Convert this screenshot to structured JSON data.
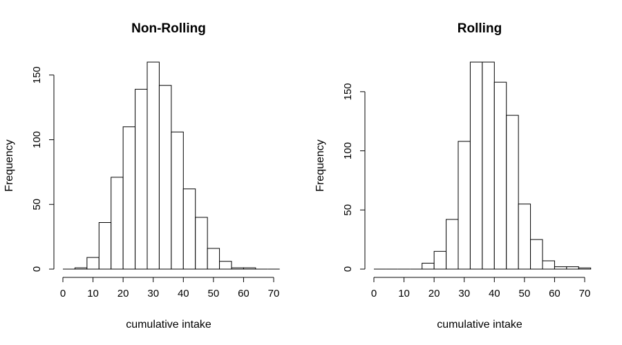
{
  "chart_data": [
    {
      "type": "bar",
      "title": "Non-Rolling",
      "xlabel": "cumulative intake",
      "ylabel": "Frequency",
      "xlim": [
        0,
        72
      ],
      "ylim": [
        0,
        160
      ],
      "bin_width": 4,
      "x_ticks": [
        0,
        10,
        20,
        30,
        40,
        50,
        60,
        70
      ],
      "y_ticks": [
        0,
        50,
        100,
        150
      ],
      "bins": [
        0,
        4,
        8,
        12,
        16,
        20,
        24,
        28,
        32,
        36,
        40,
        44,
        48,
        52,
        56,
        60,
        64,
        68
      ],
      "values": [
        0,
        1,
        9,
        36,
        71,
        110,
        139,
        160,
        142,
        106,
        62,
        40,
        16,
        6,
        1,
        1,
        0,
        0
      ]
    },
    {
      "type": "bar",
      "title": "Rolling",
      "xlabel": "cumulative intake",
      "ylabel": "Frequency",
      "xlim": [
        0,
        72
      ],
      "ylim": [
        0,
        175
      ],
      "bin_width": 4,
      "x_ticks": [
        0,
        10,
        20,
        30,
        40,
        50,
        60,
        70
      ],
      "y_ticks": [
        0,
        50,
        100,
        150
      ],
      "bins": [
        0,
        4,
        8,
        12,
        16,
        20,
        24,
        28,
        32,
        36,
        40,
        44,
        48,
        52,
        56,
        60,
        64,
        68
      ],
      "values": [
        0,
        0,
        0,
        0,
        5,
        15,
        42,
        108,
        175,
        175,
        158,
        130,
        55,
        25,
        7,
        2,
        2,
        1
      ]
    }
  ]
}
